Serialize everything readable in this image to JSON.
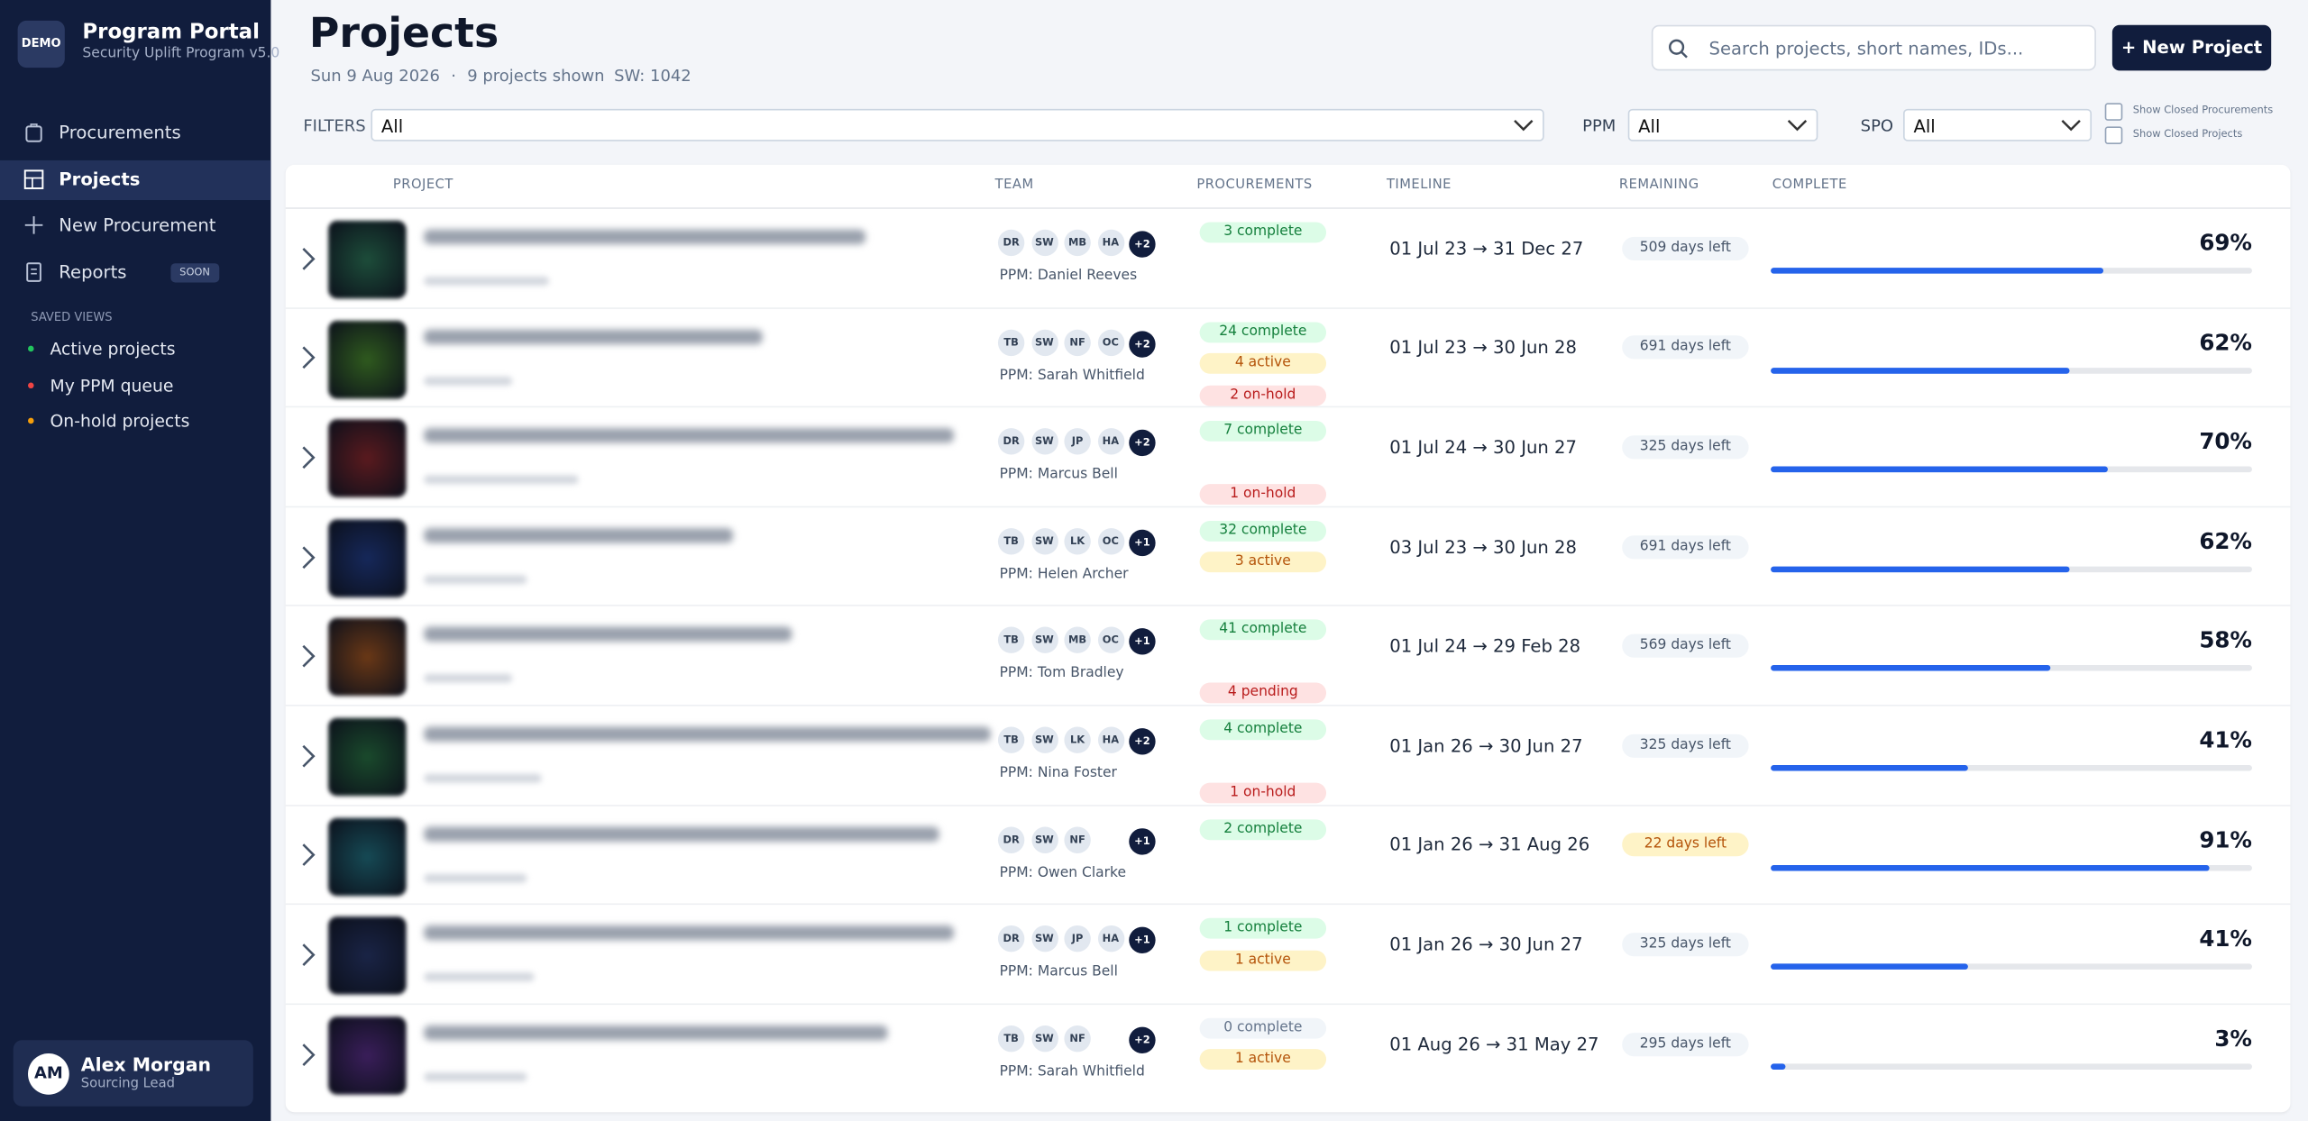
{
  "sidebar": {
    "logo": "DEMO",
    "title": "Program Portal",
    "subtitle": "Security Uplift Program v5.0",
    "nav": [
      {
        "label": "Procurements"
      },
      {
        "label": "Projects",
        "active": true
      },
      {
        "label": "New Procurement"
      },
      {
        "label": "Reports",
        "badge": "SOON"
      }
    ],
    "saved_views_heading": "SAVED VIEWS",
    "saved_views": [
      {
        "label": "Active projects",
        "color": "#22c55e"
      },
      {
        "label": "My PPM queue",
        "color": "#ef4444"
      },
      {
        "label": "On-hold projects",
        "color": "#f59e0b"
      }
    ],
    "user": {
      "initials": "AM",
      "name": "Alex Morgan",
      "role": "Sourcing Lead"
    }
  },
  "header": {
    "title": "Projects",
    "date": "Sun 9 Aug 2026",
    "separator": "·",
    "count": "9 projects shown",
    "sw": "SW: 1042",
    "search_placeholder": "Search projects, short names, IDs...",
    "new_button": "+ New Project"
  },
  "filters": {
    "label": "FILTERS",
    "value": "All",
    "ppm_label": "PPM",
    "ppm_value": "All",
    "spo_label": "SPO",
    "spo_value": "All",
    "checkboxes": [
      "Show Closed Procurements",
      "Show Closed Projects"
    ]
  },
  "table": {
    "columns": [
      "PROJECT",
      "TEAM",
      "PROCUREMENTS",
      "TIMELINE",
      "REMAINING",
      "COMPLETE"
    ],
    "rows": [
      {
        "thumbnail_color": "#1d4d3a",
        "team": [
          "DR",
          "SW",
          "MB",
          "HA"
        ],
        "team_more": "+2",
        "ppm": "PPM: Daniel Reeves",
        "procurements": [
          "3 complete"
        ],
        "timeline": "01 Jul 23 → 31 Dec 27",
        "remaining": "509 days left",
        "complete": {
          "value": 69,
          "label": "69%"
        }
      },
      {
        "thumbnail_color": "#2f5a1e",
        "team": [
          "TB",
          "SW",
          "NF",
          "OC"
        ],
        "team_more": "+2",
        "ppm": "PPM: Sarah Whitfield",
        "procurements": [
          "24 complete",
          "4 active",
          "2 on-hold"
        ],
        "timeline": "01 Jul 23 → 30 Jun 28",
        "remaining": "691 days left",
        "complete": {
          "value": 62,
          "label": "62%"
        }
      },
      {
        "thumbnail_color": "#5a1a1e",
        "team": [
          "DR",
          "SW",
          "JP",
          "HA"
        ],
        "team_more": "+2",
        "ppm": "PPM: Marcus Bell",
        "procurements": [
          "7 complete",
          "1 on-hold"
        ],
        "timeline": "01 Jul 24 → 30 Jun 27",
        "remaining": "325 days left",
        "complete": {
          "value": 70,
          "label": "70%"
        }
      },
      {
        "thumbnail_color": "#16285a",
        "team": [
          "TB",
          "SW",
          "LK",
          "OC"
        ],
        "team_more": "+1",
        "ppm": "PPM: Helen Archer",
        "procurements": [
          "32 complete",
          "3 active"
        ],
        "timeline": "03 Jul 23 → 30 Jun 28",
        "remaining": "691 days left",
        "complete": {
          "value": 62,
          "label": "62%"
        }
      },
      {
        "thumbnail_color": "#6a3816",
        "team": [
          "TB",
          "SW",
          "MB",
          "OC"
        ],
        "team_more": "+1",
        "ppm": "PPM: Tom Bradley",
        "procurements": [
          "41 complete",
          "4 pending"
        ],
        "timeline": "01 Jul 24 → 29 Feb 28",
        "remaining": "569 days left",
        "complete": {
          "value": 58,
          "label": "58%"
        }
      },
      {
        "thumbnail_color": "#1a4a2c",
        "team": [
          "TB",
          "SW",
          "LK",
          "HA"
        ],
        "team_more": "+2",
        "ppm": "PPM: Nina Foster",
        "procurements": [
          "4 complete",
          "1 on-hold"
        ],
        "timeline": "01 Jan 26 → 30 Jun 27",
        "remaining": "325 days left",
        "complete": {
          "value": 41,
          "label": "41%"
        }
      },
      {
        "thumbnail_color": "#164a55",
        "team": [
          "DR",
          "SW",
          "NF"
        ],
        "team_more": "+1",
        "ppm": "PPM: Owen Clarke",
        "procurements": [
          "2 complete"
        ],
        "timeline": "01 Jan 26 → 31 Aug 26",
        "remaining": "22 days left",
        "complete": {
          "value": 91,
          "label": "91%"
        }
      },
      {
        "thumbnail_color": "#1a2446",
        "team": [
          "DR",
          "SW",
          "JP",
          "HA"
        ],
        "team_more": "+1",
        "ppm": "PPM: Marcus Bell",
        "procurements": [
          "1 complete",
          "1 active"
        ],
        "timeline": "01 Jan 26 → 30 Jun 27",
        "remaining": "325 days left",
        "complete": {
          "value": 41,
          "label": "41%"
        }
      },
      {
        "thumbnail_color": "#3a1e5a",
        "team": [
          "TB",
          "SW",
          "NF"
        ],
        "team_more": "+2",
        "ppm": "PPM: Sarah Whitfield",
        "procurements": [
          "0 complete",
          "1 active"
        ],
        "timeline": "01 Aug 26 → 31 May 27",
        "remaining": "295 days left",
        "complete": {
          "value": 3,
          "label": "3%"
        }
      }
    ]
  }
}
